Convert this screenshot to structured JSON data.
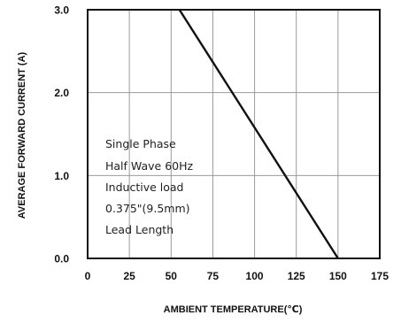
{
  "chart_data": {
    "type": "line",
    "title": "",
    "xlabel": "AMBIENT TEMPERATURE(℃)",
    "ylabel": "AVERAGE FORWARD CURRENT (A)",
    "xlim": [
      0,
      175
    ],
    "ylim": [
      0,
      3.0
    ],
    "x_ticks": [
      0,
      25,
      50,
      75,
      100,
      125,
      150,
      175
    ],
    "x_tick_labels": [
      "0",
      "25",
      "50",
      "75",
      "100",
      "125",
      "150",
      "175"
    ],
    "y_ticks": [
      0,
      1.0,
      2.0,
      3.0
    ],
    "y_tick_labels": [
      "0.0",
      "1.0",
      "2.0",
      "3.0"
    ],
    "grid": true,
    "legend": "none",
    "series": [
      {
        "x": [
          55,
          150
        ],
        "y": [
          3.0,
          0.0
        ],
        "color": "#111111"
      }
    ],
    "annotation": {
      "lines": [
        "Single Phase",
        "Half Wave 60Hz",
        "Inductive load",
        "0.375\"(9.5mm)",
        "Lead Length"
      ]
    },
    "colors": {
      "frame": "#111111",
      "grid": "#9a9a9a",
      "curve": "#111111"
    }
  }
}
